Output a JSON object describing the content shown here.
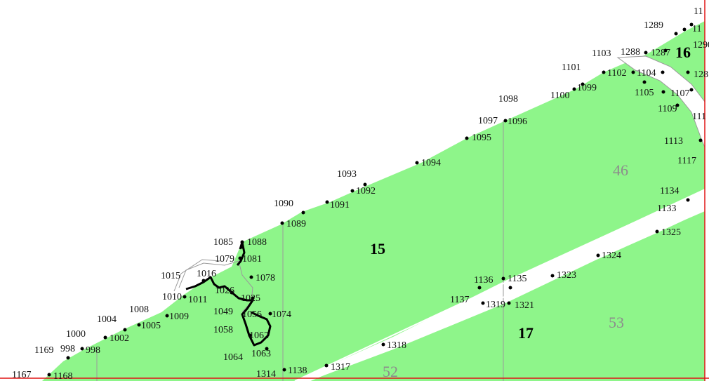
{
  "map": {
    "colors": {
      "parcel_fill": "#8ef58a",
      "background": "#ffffff",
      "boundary": "#000000",
      "border_red": "#e01515",
      "label_bold": "#000000",
      "label_grey": "#8c8c8c"
    },
    "parcel_labels": {
      "p15": "15",
      "p16": "16",
      "p17": "17",
      "p46": "46",
      "p52": "52",
      "p53": "53"
    },
    "point_labels": {
      "l1289": "1289",
      "l11a": "11",
      "l11b": "11",
      "l1290": "1290",
      "l1103": "1103",
      "l1288": "1288",
      "l1287": "1287",
      "l1101": "1101",
      "l1102": "1102",
      "l1104": "1104",
      "l128": "128",
      "l1105": "1105",
      "l1107": "1107",
      "l1100": "1100",
      "l1099": "1099",
      "l1098": "1098",
      "l1109": "1109",
      "l111": "111",
      "l1097": "1097",
      "l1096": "1096",
      "l1095": "1095",
      "l1113": "1113",
      "l1117": "1117",
      "l1094": "1094",
      "l1093": "1093",
      "l1092": "1092",
      "l1134": "1134",
      "l1133": "1133",
      "l1090": "1090",
      "l1091": "1091",
      "l1089": "1089",
      "l1325": "1325",
      "l1085": "1085",
      "l1088": "1088",
      "l1079": "1079",
      "l1081": "1081",
      "l1324": "1324",
      "l1015": "1015",
      "l1016": "1016",
      "l1078": "1078",
      "l1136": "1136",
      "l1135": "1135",
      "l1323": "1323",
      "l1010": "1010",
      "l1011": "1011",
      "l1026": "1026",
      "l1025": "1025",
      "l1137": "1137",
      "l1319": "1319",
      "l1321": "1321",
      "l1008": "1008",
      "l1049": "1049",
      "l1056": "1056",
      "l1074": "1074",
      "l1004": "1004",
      "l1005": "1005",
      "l1009": "1009",
      "l1058": "1058",
      "l1062": "1062",
      "l1000": "1000",
      "l1002": "1002",
      "l1169": "1169",
      "l998a": "998",
      "l998b": "998",
      "l1318": "1318",
      "l1063": "1063",
      "l1064": "1064",
      "l1314": "1314",
      "l1138": "1138",
      "l1317": "1317",
      "l1167": "1167",
      "l1168": "1168"
    }
  }
}
